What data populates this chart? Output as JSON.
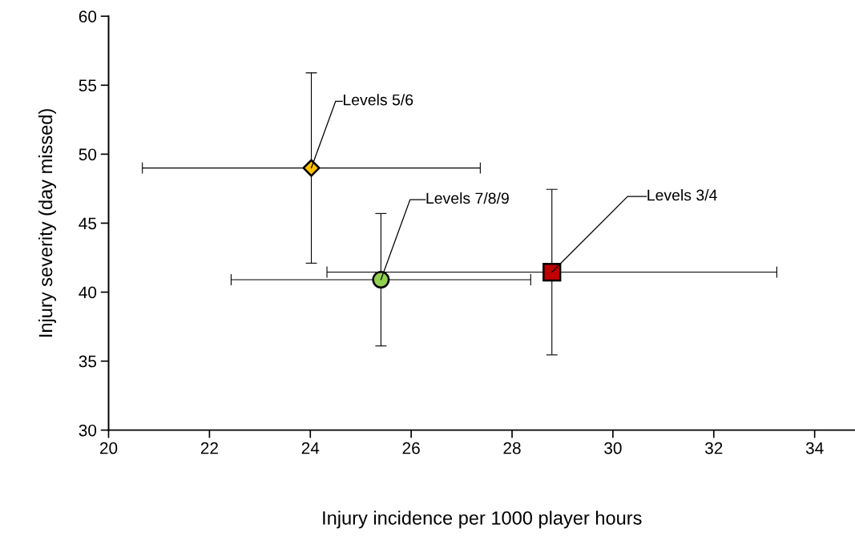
{
  "chart_data": {
    "type": "scatter",
    "xlabel": "Injury incidence per 1000 player hours",
    "ylabel": "Injury severity (day missed)",
    "xlim": [
      20,
      34.8
    ],
    "xticks": [
      20,
      22,
      24,
      26,
      28,
      30,
      32,
      34
    ],
    "ylim": [
      30,
      60
    ],
    "yticks": [
      30,
      35,
      40,
      45,
      50,
      55,
      60
    ],
    "grid": false,
    "legend": false,
    "series": [
      {
        "color": "#ffc000",
        "marker": "diamond",
        "x": [
          24.02
        ],
        "values": [
          49.0
        ],
        "errors": [
          6.9
        ],
        "xerrors": [
          3.35
        ]
      },
      {
        "color": "#92d050",
        "marker": "circle",
        "x": [
          25.4
        ],
        "values": [
          40.9
        ],
        "errors": [
          4.8
        ],
        "xerrors": [
          2.97
        ]
      },
      {
        "color": "#c00000",
        "marker": "square",
        "x": [
          28.79
        ],
        "values": [
          41.45
        ],
        "errors": [
          6.0
        ],
        "xerrors": [
          4.46
        ]
      }
    ],
    "annotations": [
      {
        "text": "Levels 5/6",
        "x": 24.02,
        "y": 49.0
      },
      {
        "text": "Levels 7/8/9",
        "x": 25.4,
        "y": 40.9
      },
      {
        "text": "Levels 3/4",
        "x": 28.79,
        "y": 41.45
      }
    ]
  }
}
